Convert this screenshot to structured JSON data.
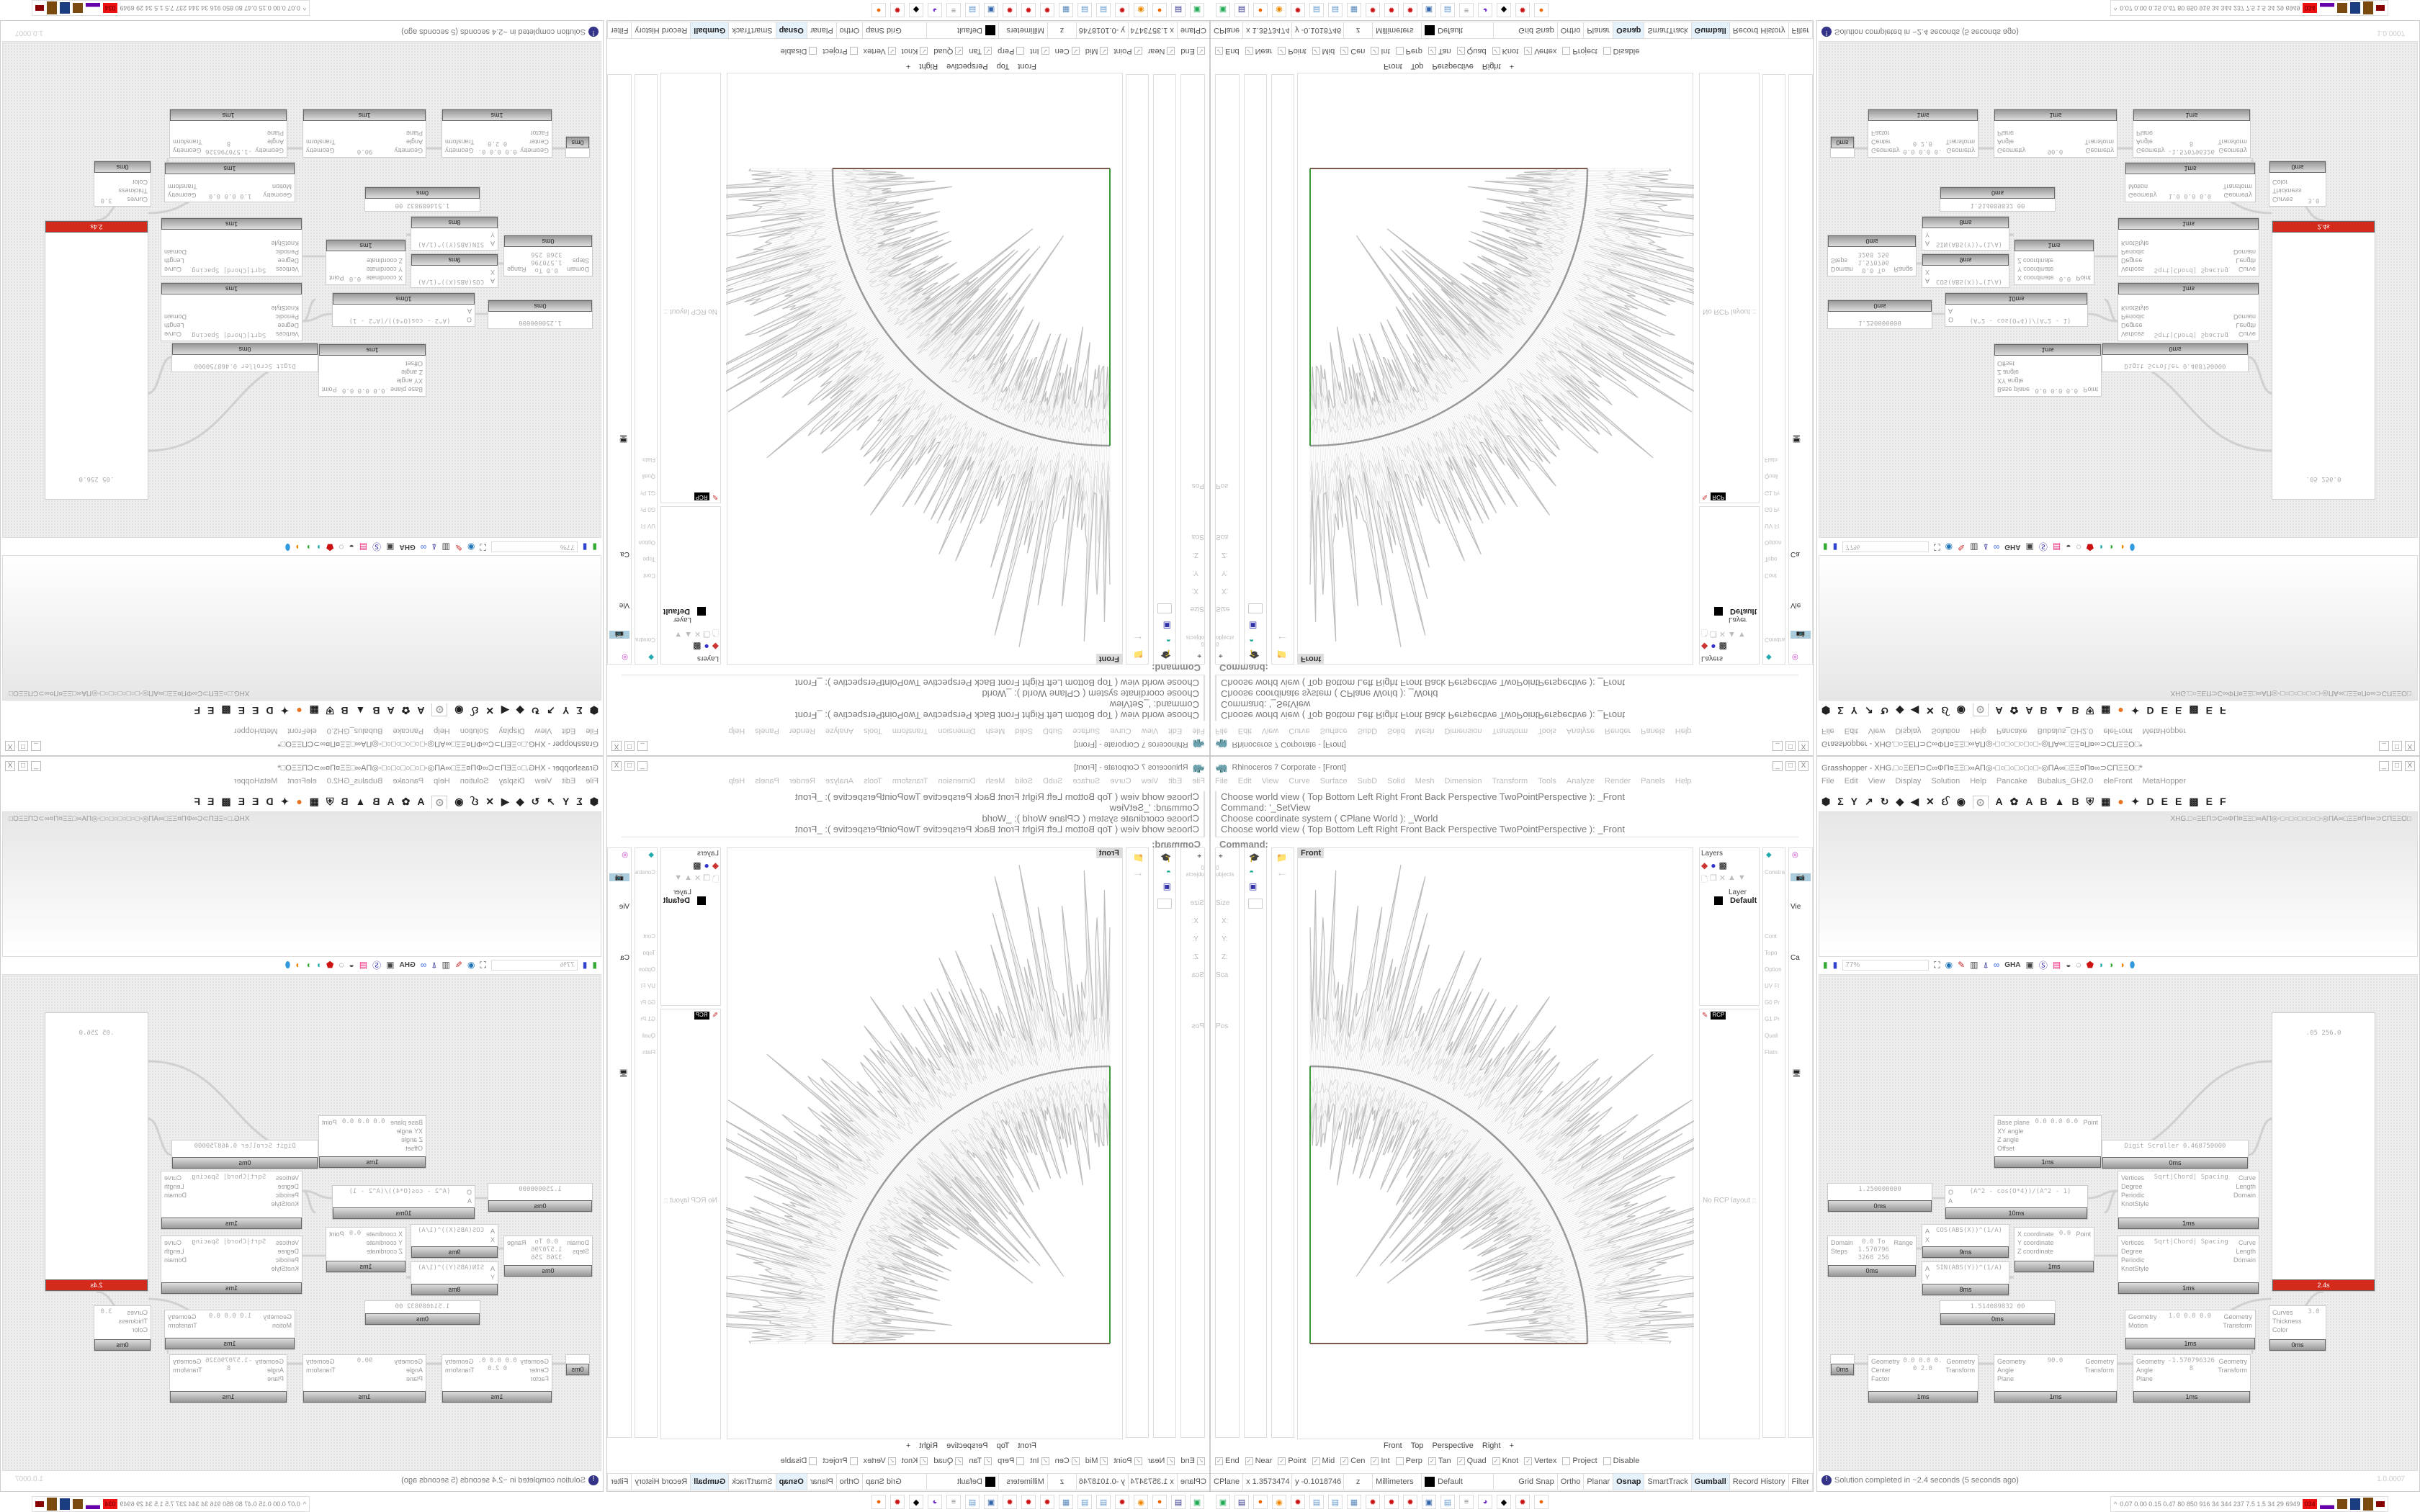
{
  "rhino": {
    "title": "Rhinoceros 7 Corporate - [Front]",
    "menu": [
      "File",
      "Edit",
      "View",
      "Curve",
      "Surface",
      "SubD",
      "Solid",
      "Mesh",
      "Dimension",
      "Transform",
      "Tools",
      "Analyze",
      "Render",
      "Panels",
      "Help"
    ],
    "history": [
      "Choose world view ( Top  Bottom  Left  Right  Front  Back  Perspective  TwoPointPerspective ): _Front",
      "Command: '_SetView",
      "Choose coordinate system ( CPlane  World ): _World",
      "Choose world view ( Top  Bottom  Left  Right  Front  Back  Perspective  TwoPointPerspective ): _Front"
    ],
    "command_prompt": "Command:",
    "viewport_label": "Front",
    "left_panel": {
      "objects": "0 objects",
      "size": "Size",
      "scale": "Sca",
      "position": "Pos",
      "x": "X:",
      "y": "Y:",
      "z": "Z:"
    },
    "layers": {
      "title": "Layers",
      "column": "Layer",
      "default_layer": "Default"
    },
    "rcp": {
      "tab": "RCP",
      "empty": "No RCP layout ::"
    },
    "side_truncated": [
      "Constra",
      "Cont",
      "Topo",
      "Option",
      "UV Fl",
      "G0 Pr",
      "G1 Pr",
      "Quali",
      "Flatn"
    ],
    "side_truncated2": [
      "Vie",
      "Ca"
    ],
    "view_tabs": [
      "Front",
      "Top",
      "Perspective",
      "Right"
    ],
    "add_tab": "+",
    "osnaps": [
      {
        "label": "End",
        "checked": true
      },
      {
        "label": "Near",
        "checked": true
      },
      {
        "label": "Point",
        "checked": true
      },
      {
        "label": "Mid",
        "checked": true
      },
      {
        "label": "Cen",
        "checked": true
      },
      {
        "label": "Int",
        "checked": true
      },
      {
        "label": "Perp",
        "checked": false
      },
      {
        "label": "Tan",
        "checked": true
      },
      {
        "label": "Quad",
        "checked": true
      },
      {
        "label": "Knot",
        "checked": true
      },
      {
        "label": "Vertex",
        "checked": true
      },
      {
        "label": "Project",
        "checked": false
      },
      {
        "label": "Disable",
        "checked": false
      }
    ],
    "status": {
      "cplane": "CPlane",
      "x": "x 1.3573474",
      "y": "y -0.1018746",
      "z": "z",
      "units": "Millimeters",
      "layer": "Default",
      "toggles": [
        {
          "label": "Grid Snap",
          "on": false
        },
        {
          "label": "Ortho",
          "on": false
        },
        {
          "label": "Planar",
          "on": false
        },
        {
          "label": "Osnap",
          "on": true
        },
        {
          "label": "SmartTrack",
          "on": false
        },
        {
          "label": "Gumball",
          "on": true
        },
        {
          "label": "Record History",
          "on": false
        },
        {
          "label": "Filter",
          "on": false
        }
      ]
    },
    "colors": {
      "x_axis": "#7a5a50",
      "y_axis": "#3a9a3a",
      "curve": "#999999",
      "mesh": "#bdbdbd"
    }
  },
  "taskbar_icons": [
    "terminal-icon",
    "save64-icon",
    "firefox-icon",
    "blender-icon",
    "app-red-icon",
    "notepad-icon",
    "notepad-icon",
    "calculator-icon",
    "app-red-icon",
    "app-red-icon",
    "app-red-icon",
    "remote-icon",
    "notepad-icon",
    "script-icon",
    "discord-icon",
    "rhino-icon",
    "app-red-icon",
    "firefox-icon"
  ],
  "gh": {
    "title": "Grasshopper - XHG.□○ΞΕΠ⊃C∞ΦΠ¤ΞΞ□∞ΑΠ◎◦□○□○□○□○□◦◎ΠΑ∞□ΞΞ¤Π¤∞⊃CΠΞΞΟ□*",
    "menu": [
      "File",
      "Edit",
      "View",
      "Display",
      "Solution",
      "Help",
      "Pancake",
      "Bubalus_GH2.0",
      "eleFront",
      "MetaHopper"
    ],
    "doc_name": "XHG.□○ΞΕΠ⊃C∞ΦΠ¤ΞΞ□∞ΑΠ◎◦□○□○□○□○□◦◎ΠΑ∞□ΞΞ¤Π¤∞⊃CΠΞΞΟ□",
    "tabs": [
      "⬢",
      "Σ",
      "Y",
      "↗",
      "↻",
      "◆",
      "◀",
      "✕",
      "ઈ",
      "◉",
      "⊙",
      "A",
      "✿",
      "A",
      "B",
      "▲",
      "B",
      "⛨",
      "▦",
      "●",
      "✦",
      "D",
      "E",
      "E",
      "▩",
      "E",
      "F"
    ],
    "zoom": "77%",
    "components": [
      {
        "kind": "viewer",
        "inputs": [],
        "outputs": [],
        "body": ".05  256.0",
        "time": "2.4s",
        "error": true
      },
      {
        "kind": "scroller",
        "inputs": [],
        "outputs": [],
        "body": "Digit Scroller  0.468750000",
        "time": "0ms"
      },
      {
        "kind": "comp",
        "inputs": [
          "Base plane",
          "XY angle",
          "Z angle",
          "Offset"
        ],
        "outputs": [
          "Point"
        ],
        "body": "0.0 0.0 0.0",
        "time": "1ms"
      },
      {
        "kind": "slider",
        "inputs": [],
        "outputs": [],
        "body": "1.250000000",
        "time": "0ms"
      },
      {
        "kind": "expr",
        "inputs": [
          "O",
          "A"
        ],
        "outputs": [],
        "body": "(A^2 - cos(O*4))/(A^2 - 1)",
        "time": "10ms"
      },
      {
        "kind": "comp",
        "inputs": [
          "Vertices",
          "Degree",
          "Periodic",
          "KnotStyle"
        ],
        "outputs": [
          "Curve",
          "Length",
          "Domain"
        ],
        "body": "Sqrt|Chord| Spacing",
        "time": "1ms"
      },
      {
        "kind": "expr",
        "inputs": [
          "A",
          "X"
        ],
        "outputs": [],
        "body": "COS(ABS(X))^(1/A)",
        "time": "9ms"
      },
      {
        "kind": "comp",
        "inputs": [
          "X coordinate",
          "Y coordinate",
          "Z coordinate"
        ],
        "outputs": [
          "Point"
        ],
        "body": "0.0",
        "time": "1ms"
      },
      {
        "kind": "comp",
        "inputs": [
          "Vertices",
          "Degree",
          "Periodic",
          "KnotStyle"
        ],
        "outputs": [
          "Curve",
          "Length",
          "Domain"
        ],
        "body": "Sqrt|Chord| Spacing",
        "time": "1ms"
      },
      {
        "kind": "comp",
        "inputs": [
          "Domain",
          "Steps"
        ],
        "outputs": [
          "Range"
        ],
        "body": "0.0 To 1.5707963268  256",
        "time": "0ms"
      },
      {
        "kind": "expr",
        "inputs": [
          "A",
          "Y"
        ],
        "outputs": [],
        "body": "SIN(ABS(Y))^(1/A)",
        "time": "8ms"
      },
      {
        "kind": "scroller",
        "inputs": [],
        "outputs": [],
        "body": "1.514089832 00",
        "time": "0ms"
      },
      {
        "kind": "comp",
        "inputs": [
          "Curves",
          "Thickness",
          "Color"
        ],
        "outputs": [],
        "body": "3.0",
        "time": "0ms"
      },
      {
        "kind": "comp",
        "inputs": [
          "Geometry",
          "Motion"
        ],
        "outputs": [
          "Geometry",
          "Transform"
        ],
        "body": "1.0 0.0 0.0",
        "time": "1ms"
      },
      {
        "kind": "param",
        "inputs": [],
        "outputs": [],
        "body": "",
        "time": "0ms"
      },
      {
        "kind": "comp",
        "inputs": [
          "Geometry",
          "Center",
          "Factor"
        ],
        "outputs": [
          "Geometry",
          "Transform"
        ],
        "body": "0.0 0.0 0.0  2.0",
        "time": "1ms"
      },
      {
        "kind": "comp",
        "inputs": [
          "Geometry",
          "Angle",
          "Plane"
        ],
        "outputs": [
          "Geometry",
          "Transform"
        ],
        "body": "90.0",
        "time": "1ms"
      },
      {
        "kind": "comp",
        "inputs": [
          "Geometry",
          "Angle",
          "Plane"
        ],
        "outputs": [
          "Geometry",
          "Transform"
        ],
        "body": "-1.5707963268",
        "time": "1ms"
      }
    ],
    "status": "Solution completed in ~2.4 seconds (5 seconds ago)",
    "version": "1.0.0007",
    "perf": "0.07 0.00 0.15 0.47 80 850 916 34 344 237 7.5 1.5 34 29 6949",
    "perf_badge": "034"
  }
}
